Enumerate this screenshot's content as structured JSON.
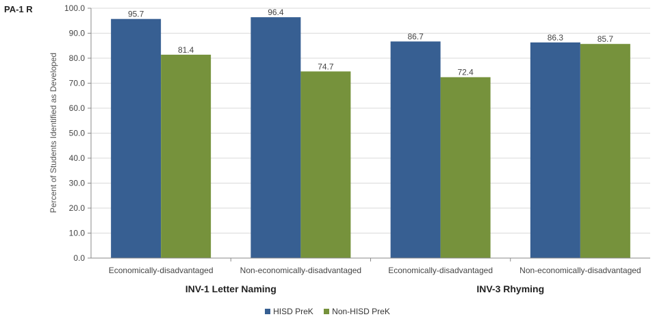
{
  "corner_label": "PA-1 R",
  "colors": {
    "hisd": "#375F92",
    "nonhisd": "#76923C",
    "grid": "#d9d9d9",
    "axis": "#888888"
  },
  "chart_data": {
    "type": "bar",
    "title": "",
    "ylabel": "Percent of Students Identified as  Developed",
    "ylim": [
      0,
      100
    ],
    "yticks": [
      "0.0",
      "10.0",
      "20.0",
      "30.0",
      "40.0",
      "50.0",
      "60.0",
      "70.0",
      "80.0",
      "90.0",
      "100.0"
    ],
    "categories": [
      "Economically-disadvantaged",
      "Non-economically-disadvantaged",
      "Economically-disadvantaged",
      "Non-economically-disadvantaged"
    ],
    "groups": [
      {
        "label": "INV-1 Letter Naming",
        "categories": [
          0,
          1
        ]
      },
      {
        "label": "INV-3 Rhyming",
        "categories": [
          2,
          3
        ]
      }
    ],
    "series": [
      {
        "name": "HISD PreK",
        "values": [
          95.7,
          96.4,
          86.7,
          86.3
        ],
        "labels": [
          "95.7",
          "96.4",
          "86.7",
          "86.3"
        ]
      },
      {
        "name": "Non-HISD PreK",
        "values": [
          81.4,
          74.7,
          72.4,
          85.7
        ],
        "labels": [
          "81.4",
          "74.7",
          "72.4",
          "85.7"
        ]
      }
    ],
    "grid": true,
    "legend_position": "bottom"
  }
}
